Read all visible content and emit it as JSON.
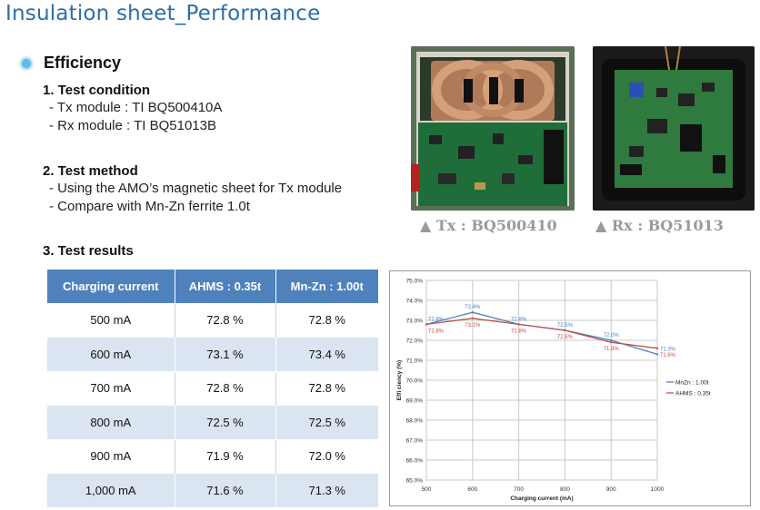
{
  "title": "Insulation sheet_Performance",
  "section_title": "Efficiency",
  "test_condition": {
    "heading": "1. Test condition",
    "lines": [
      "- Tx module : TI BQ500410A",
      "- Rx module : TI BQ51013B"
    ]
  },
  "test_method": {
    "heading": "2. Test method",
    "lines": [
      "- Using the AMO’s magnetic sheet for Tx module",
      "- Compare with Mn-Zn ferrite 1.0t"
    ]
  },
  "test_results": {
    "heading": "3. Test results"
  },
  "captions": {
    "tx": "▲ Tx : BQ500410",
    "rx": "▲ Rx : BQ51013"
  },
  "table": {
    "headers": [
      "Charging current",
      "AHMS : 0.35t",
      "Mn-Zn : 1.00t"
    ],
    "rows": [
      [
        "500 mA",
        "72.8 %",
        "72.8 %"
      ],
      [
        "600 mA",
        "73.1 %",
        "73.4 %"
      ],
      [
        "700 mA",
        "72.8 %",
        "72.8 %"
      ],
      [
        "800 mA",
        "72.5 %",
        "72.5 %"
      ],
      [
        "900 mA",
        "71.9 %",
        "72.0 %"
      ],
      [
        "1,000 mA",
        "71.6 %",
        "71.3 %"
      ]
    ]
  },
  "colors": {
    "title": "#2c6fa8",
    "table_header": "#4f81bd",
    "table_stripe": "#dbe5f1",
    "mnzn_line": "#4f81bd",
    "ahms_line": "#c0504d"
  },
  "chart_data": {
    "type": "line",
    "x": [
      500,
      600,
      700,
      800,
      900,
      1000
    ],
    "xlabel": "Charging current (mA)",
    "ylabel": "Effi ciency (%)",
    "xlim": [
      500,
      1000
    ],
    "ylim": [
      65.0,
      75.0
    ],
    "x_ticks": [
      "500",
      "600",
      "700",
      "800",
      "900",
      "1000"
    ],
    "y_ticks": [
      "65.0%",
      "66.0%",
      "67.0%",
      "68.0%",
      "69.0%",
      "70.0%",
      "71.0%",
      "72.0%",
      "73.0%",
      "74.0%",
      "75.0%"
    ],
    "grid": true,
    "legend_position": "right",
    "series": [
      {
        "name": "MnZn : 1.00t",
        "color": "#4f81bd",
        "values": [
          72.8,
          73.4,
          72.8,
          72.5,
          72.0,
          71.3
        ],
        "labels": [
          "72.8%",
          "73.4%",
          "72.8%",
          "72.5%",
          "72.0%",
          "71.3%"
        ]
      },
      {
        "name": "AHMS : 0.35t",
        "color": "#c0504d",
        "values": [
          72.8,
          73.1,
          72.8,
          72.5,
          71.9,
          71.6
        ],
        "labels": [
          "72.8%",
          "73.1%",
          "72.8%",
          "72.5%",
          "71.9%",
          "71.6%"
        ]
      }
    ]
  }
}
